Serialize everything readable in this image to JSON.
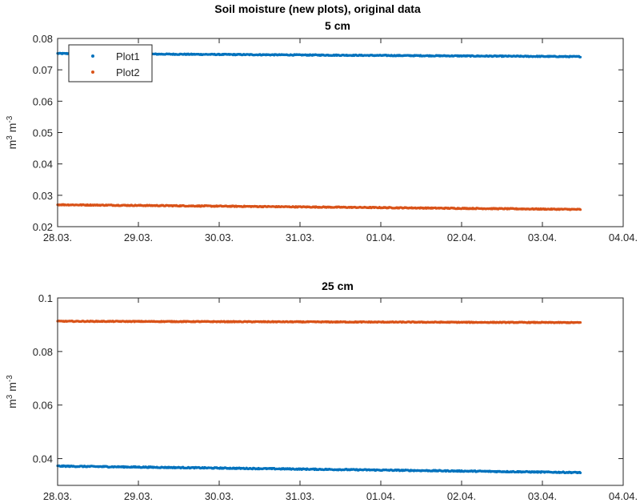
{
  "figure_title": "Soil moisture (new plots), original data",
  "colors": {
    "Plot1": "#0072BD",
    "Plot2": "#D95319",
    "axis": "#262626"
  },
  "chart_data": [
    {
      "type": "scatter",
      "title": "5 cm",
      "ylabel_base": "m",
      "ylabel_exp1": "3",
      "ylabel_mid": " m",
      "ylabel_exp2": "-3",
      "x_ticks": [
        "28.03.",
        "29.03.",
        "30.03.",
        "31.03.",
        "01.04.",
        "02.04.",
        "03.04.",
        "04.04."
      ],
      "xlim": [
        "28.03.",
        "04.04."
      ],
      "ylim": [
        0.02,
        0.08
      ],
      "y_ticks": [
        "0.02",
        "0.03",
        "0.04",
        "0.05",
        "0.06",
        "0.07",
        "0.08"
      ],
      "legend": {
        "placement": "top-left",
        "entries": [
          "Plot1",
          "Plot2"
        ]
      },
      "series": [
        {
          "name": "Plot1",
          "x_range": [
            "28.03.",
            "03.04."
          ],
          "start": 0.0752,
          "end": 0.0742,
          "noise": 0.00015
        },
        {
          "name": "Plot2",
          "x_range": [
            "28.03.",
            "03.04."
          ],
          "start": 0.027,
          "end": 0.0255,
          "noise": 0.00015
        }
      ]
    },
    {
      "type": "scatter",
      "title": "25 cm",
      "ylabel_base": "m",
      "ylabel_exp1": "3",
      "ylabel_mid": " m",
      "ylabel_exp2": "-3",
      "x_ticks": [
        "28.03.",
        "29.03.",
        "30.03.",
        "31.03.",
        "01.04.",
        "02.04.",
        "03.04.",
        "04.04."
      ],
      "xlim": [
        "28.03.",
        "04.04."
      ],
      "ylim": [
        0.03,
        0.1
      ],
      "y_ticks": [
        "0.04",
        "0.06",
        "0.08",
        "0.1"
      ],
      "series": [
        {
          "name": "Plot1",
          "x_range": [
            "28.03.",
            "03.04."
          ],
          "start": 0.0372,
          "end": 0.0348,
          "noise": 0.0002
        },
        {
          "name": "Plot2",
          "x_range": [
            "28.03.",
            "03.04."
          ],
          "start": 0.0913,
          "end": 0.0908,
          "noise": 0.00015
        }
      ]
    }
  ]
}
